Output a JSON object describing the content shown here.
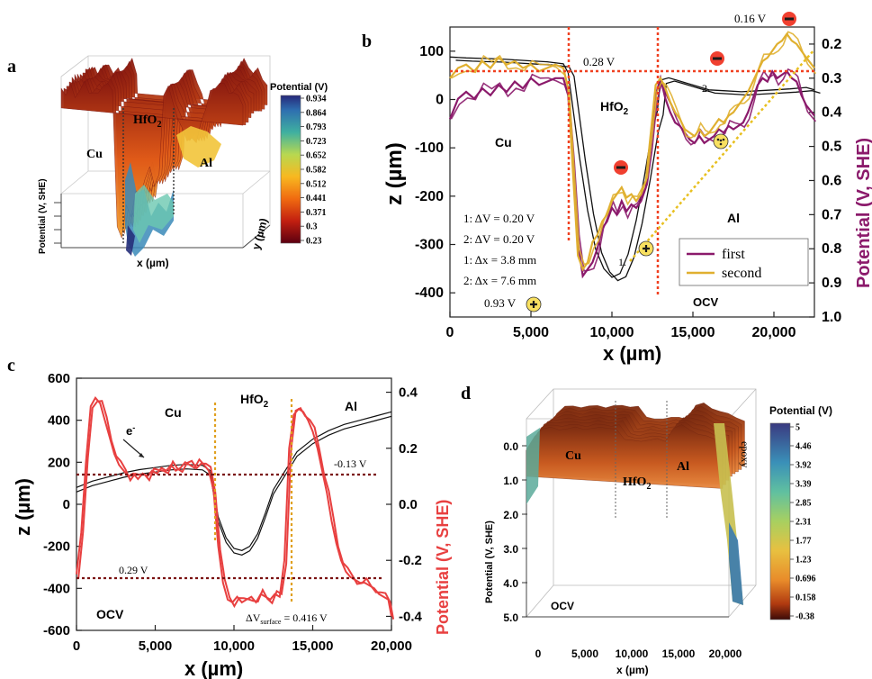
{
  "chart_data": [
    {
      "panel": "a",
      "type": "surface3d",
      "zlabel": "Potential (V, SHE)",
      "xlabel": "x (µm)",
      "ylabel": "y (µm)",
      "regions": [
        "Cu",
        "HfO",
        "Al"
      ],
      "colorbar": {
        "title": "Potential (V)",
        "ticks": [
          "0.934",
          "0.864",
          "0.793",
          "0.723",
          "0.652",
          "0.582",
          "0.512",
          "0.441",
          "0.371",
          "0.3",
          "0.23"
        ]
      },
      "profile": [
        0.28,
        0.3,
        0.27,
        0.32,
        0.28,
        0.26,
        0.3,
        0.29,
        0.31,
        0.27,
        0.25,
        0.3,
        0.86,
        0.9,
        0.78,
        0.82,
        0.7,
        0.74,
        0.66,
        0.6,
        0.7,
        0.64,
        0.3,
        0.28,
        0.34,
        0.4,
        0.46,
        0.5,
        0.48,
        0.52,
        0.42,
        0.36,
        0.3,
        0.28,
        0.25,
        0.27,
        0.3,
        0.29,
        0.32,
        0.35
      ]
    },
    {
      "panel": "b",
      "type": "line",
      "xlabel": "x (µm)",
      "ylabel": "z (µm)",
      "y2label": "Potential (V, SHE)",
      "xlim": [
        0,
        22500
      ],
      "ylim": [
        -450,
        150
      ],
      "y2lim": [
        1.0,
        0.15
      ],
      "xticks": [
        "0",
        "5,000",
        "10,000",
        "15,000",
        "20,000"
      ],
      "yticks": [
        "100",
        "0",
        "-100",
        "-200",
        "-300",
        "-400"
      ],
      "y2ticks": [
        "0.2",
        "0.3",
        "0.4",
        "0.5",
        "0.6",
        "0.7",
        "0.8",
        "0.9",
        "1.0"
      ],
      "regions": {
        "cu": "Cu",
        "hfo2": "HfO",
        "al": "Al",
        "ocv": "OCV"
      },
      "annotations": {
        "v028": "0.28 V",
        "v016": "0.16 V",
        "v093": "0.93 V",
        "dv1": "1: ΔV = 0.20 V",
        "dv2": "2: ΔV = 0.20 V",
        "dx1": "1: Δx = 3.8 mm",
        "dx2": "2: Δx = 7.6 mm",
        "n1": "1.",
        "n2": "2."
      },
      "legend": [
        "first",
        "second"
      ],
      "legend_position": "bottom-right",
      "profile_x": [
        0,
        1000,
        2000,
        3000,
        4000,
        5000,
        6000,
        7000,
        7300,
        7600,
        8000,
        8500,
        9000,
        9500,
        10000,
        10500,
        11000,
        11500,
        12000,
        12500,
        12800,
        13000,
        13500,
        14000,
        15000,
        16000,
        17000,
        18000,
        19000,
        20000,
        21000,
        22000,
        22500
      ],
      "profile_z": [
        88,
        86,
        85,
        84,
        82,
        80,
        78,
        74,
        55,
        -20,
        -120,
        -230,
        -310,
        -350,
        -368,
        -360,
        -320,
        -250,
        -160,
        -60,
        -25,
        40,
        45,
        40,
        30,
        20,
        18,
        16,
        18,
        20,
        22,
        25,
        20
      ],
      "series": [
        {
          "name": "first",
          "color": "#8b1a6b",
          "x": [
            0,
            500,
            1000,
            1500,
            2000,
            2500,
            3000,
            3500,
            4000,
            4500,
            5000,
            5500,
            6000,
            6500,
            7000,
            7300,
            7600,
            7900,
            8200,
            8500,
            8800,
            9100,
            9400,
            9700,
            10000,
            10300,
            10600,
            10900,
            11200,
            11500,
            11800,
            12100,
            12400,
            12700,
            13000,
            13300,
            13600,
            13900,
            14200,
            14500,
            14800,
            15100,
            15400,
            15700,
            16000,
            16300,
            16600,
            16900,
            17200,
            17500,
            17800,
            18100,
            18400,
            18700,
            19000,
            19300,
            19600,
            19900,
            20200,
            20500,
            20800,
            21100,
            21400,
            21700,
            22000,
            22500
          ],
          "values": [
            0.42,
            0.36,
            0.34,
            0.36,
            0.33,
            0.35,
            0.32,
            0.34,
            0.31,
            0.33,
            0.3,
            0.32,
            0.31,
            0.3,
            0.3,
            0.35,
            0.55,
            0.78,
            0.88,
            0.86,
            0.84,
            0.8,
            0.74,
            0.72,
            0.68,
            0.7,
            0.66,
            0.69,
            0.67,
            0.68,
            0.66,
            0.62,
            0.5,
            0.35,
            0.3,
            0.36,
            0.4,
            0.43,
            0.44,
            0.46,
            0.48,
            0.49,
            0.47,
            0.49,
            0.48,
            0.47,
            0.45,
            0.46,
            0.44,
            0.45,
            0.44,
            0.43,
            0.4,
            0.36,
            0.32,
            0.3,
            0.31,
            0.28,
            0.3,
            0.29,
            0.28,
            0.3,
            0.31,
            0.35,
            0.38,
            0.41
          ]
        },
        {
          "name": "second",
          "color": "#e0b030",
          "x": [
            0,
            500,
            1000,
            1500,
            2000,
            2500,
            3000,
            3500,
            4000,
            4500,
            5000,
            5500,
            6000,
            6500,
            7000,
            7300,
            7600,
            7900,
            8200,
            8500,
            8800,
            9100,
            9400,
            9700,
            10000,
            10300,
            10600,
            10900,
            11200,
            11500,
            11800,
            12100,
            12400,
            12700,
            13000,
            13300,
            13600,
            13900,
            14200,
            14500,
            14800,
            15100,
            15400,
            15700,
            16000,
            16300,
            16600,
            16900,
            17200,
            17500,
            17800,
            18100,
            18400,
            18700,
            19000,
            19300,
            19600,
            19900,
            20200,
            20500,
            20800,
            21100,
            21400,
            21700,
            22000,
            22500
          ],
          "values": [
            0.3,
            0.27,
            0.26,
            0.28,
            0.25,
            0.27,
            0.24,
            0.26,
            0.25,
            0.27,
            0.26,
            0.28,
            0.27,
            0.26,
            0.27,
            0.33,
            0.58,
            0.82,
            0.86,
            0.84,
            0.78,
            0.76,
            0.72,
            0.7,
            0.66,
            0.64,
            0.62,
            0.65,
            0.64,
            0.66,
            0.64,
            0.6,
            0.46,
            0.32,
            0.3,
            0.33,
            0.37,
            0.4,
            0.42,
            0.45,
            0.46,
            0.47,
            0.45,
            0.47,
            0.46,
            0.44,
            0.42,
            0.43,
            0.41,
            0.4,
            0.38,
            0.36,
            0.34,
            0.31,
            0.28,
            0.25,
            0.24,
            0.22,
            0.2,
            0.19,
            0.17,
            0.19,
            0.2,
            0.22,
            0.24,
            0.27
          ]
        }
      ]
    },
    {
      "panel": "c",
      "type": "line",
      "xlabel": "x (µm)",
      "ylabel": "z (µm)",
      "y2label": "Potential (V, SHE)",
      "xlim": [
        0,
        20000
      ],
      "ylim": [
        -600,
        600
      ],
      "y2lim": [
        -0.45,
        0.45
      ],
      "xticks": [
        "0",
        "5,000",
        "10,000",
        "15,000",
        "20,000"
      ],
      "yticks": [
        "600",
        "400",
        "200",
        "0",
        "-200",
        "-400",
        "-600"
      ],
      "y2ticks": [
        "-0.4",
        "-0.2",
        "0.0",
        "0.2",
        "0.4"
      ],
      "regions": {
        "cu": "Cu",
        "hfo2": "HfO",
        "al": "Al",
        "ocv": "OCV"
      },
      "annotations": {
        "electron": "e",
        "vneg013": "-0.13 V",
        "v029": "0.29 V",
        "dvs": "ΔV",
        "dvs_sub": "surface",
        "dvs_val": " = 0.416 V"
      },
      "profile_x": [
        0,
        1000,
        2000,
        3000,
        4000,
        5000,
        6000,
        7000,
        8000,
        8500,
        9000,
        9500,
        10000,
        10500,
        11000,
        11500,
        12000,
        12500,
        13000,
        13500,
        14000,
        15000,
        16000,
        17000,
        18000,
        19000,
        20000
      ],
      "profile_z": [
        80,
        110,
        130,
        150,
        165,
        175,
        185,
        190,
        185,
        160,
        -60,
        -160,
        -210,
        -220,
        -200,
        -140,
        -40,
        70,
        130,
        190,
        250,
        310,
        350,
        380,
        400,
        420,
        440
      ],
      "series": [
        {
          "name": "potential",
          "color": "#e84040",
          "x": [
            0,
            300,
            600,
            900,
            1200,
            1500,
            1800,
            2100,
            2400,
            2700,
            3000,
            3300,
            3600,
            3900,
            4200,
            4500,
            4800,
            5100,
            5400,
            5700,
            6000,
            6300,
            6600,
            6900,
            7200,
            7500,
            7800,
            8100,
            8400,
            8700,
            9000,
            9300,
            9600,
            9900,
            10200,
            10500,
            10800,
            11100,
            11400,
            11700,
            12000,
            12300,
            12600,
            12900,
            13200,
            13500,
            13800,
            14100,
            14400,
            14700,
            15000,
            15300,
            15600,
            15900,
            16200,
            16500,
            16800,
            17100,
            17400,
            17700,
            18000,
            18300,
            18600,
            18900,
            19200,
            19500,
            19800,
            20000
          ],
          "values": [
            0.25,
            0.1,
            -0.15,
            -0.35,
            -0.38,
            -0.36,
            -0.3,
            -0.24,
            -0.18,
            -0.14,
            -0.12,
            -0.1,
            -0.11,
            -0.09,
            -0.11,
            -0.1,
            -0.12,
            -0.11,
            -0.13,
            -0.12,
            -0.14,
            -0.12,
            -0.13,
            -0.15,
            -0.14,
            -0.13,
            -0.16,
            -0.14,
            -0.12,
            -0.05,
            0.15,
            0.28,
            0.34,
            0.35,
            0.33,
            0.35,
            0.34,
            0.33,
            0.35,
            0.32,
            0.33,
            0.34,
            0.32,
            0.33,
            0.2,
            -0.2,
            -0.32,
            -0.34,
            -0.33,
            -0.3,
            -0.26,
            -0.2,
            -0.12,
            -0.04,
            0.06,
            0.14,
            0.2,
            0.24,
            0.26,
            0.27,
            0.28,
            0.28,
            0.29,
            0.3,
            0.32,
            0.33,
            0.34,
            0.4
          ]
        }
      ]
    },
    {
      "panel": "d",
      "type": "surface3d",
      "zlabel": "Potential (V, SHE)",
      "xlabel": "x (µm)",
      "xticks": [
        "0",
        "5,000",
        "10,000",
        "15,000",
        "20,000"
      ],
      "zticks": [
        "0.0",
        "1.0",
        "2.0",
        "3.0",
        "4.0",
        "5.0"
      ],
      "regions": [
        "Cu",
        "HfO",
        "Al",
        "epoxy",
        "OCV"
      ],
      "colorbar": {
        "title": "Potential (V)",
        "ticks": [
          "5",
          "4.46",
          "3.92",
          "3.39",
          "2.85",
          "2.31",
          "1.77",
          "1.23",
          "0.696",
          "0.158",
          "-0.38"
        ]
      },
      "profile": [
        0.6,
        0.2,
        0.05,
        0.0,
        0.02,
        0.03,
        0.01,
        0.02,
        0.0,
        0.02,
        0.01,
        0.0,
        0.35,
        0.36,
        0.34,
        0.35,
        0.33,
        0.35,
        0.0,
        -0.05,
        0.05,
        0.15,
        0.25,
        0.32,
        0.4,
        4.9
      ]
    }
  ]
}
